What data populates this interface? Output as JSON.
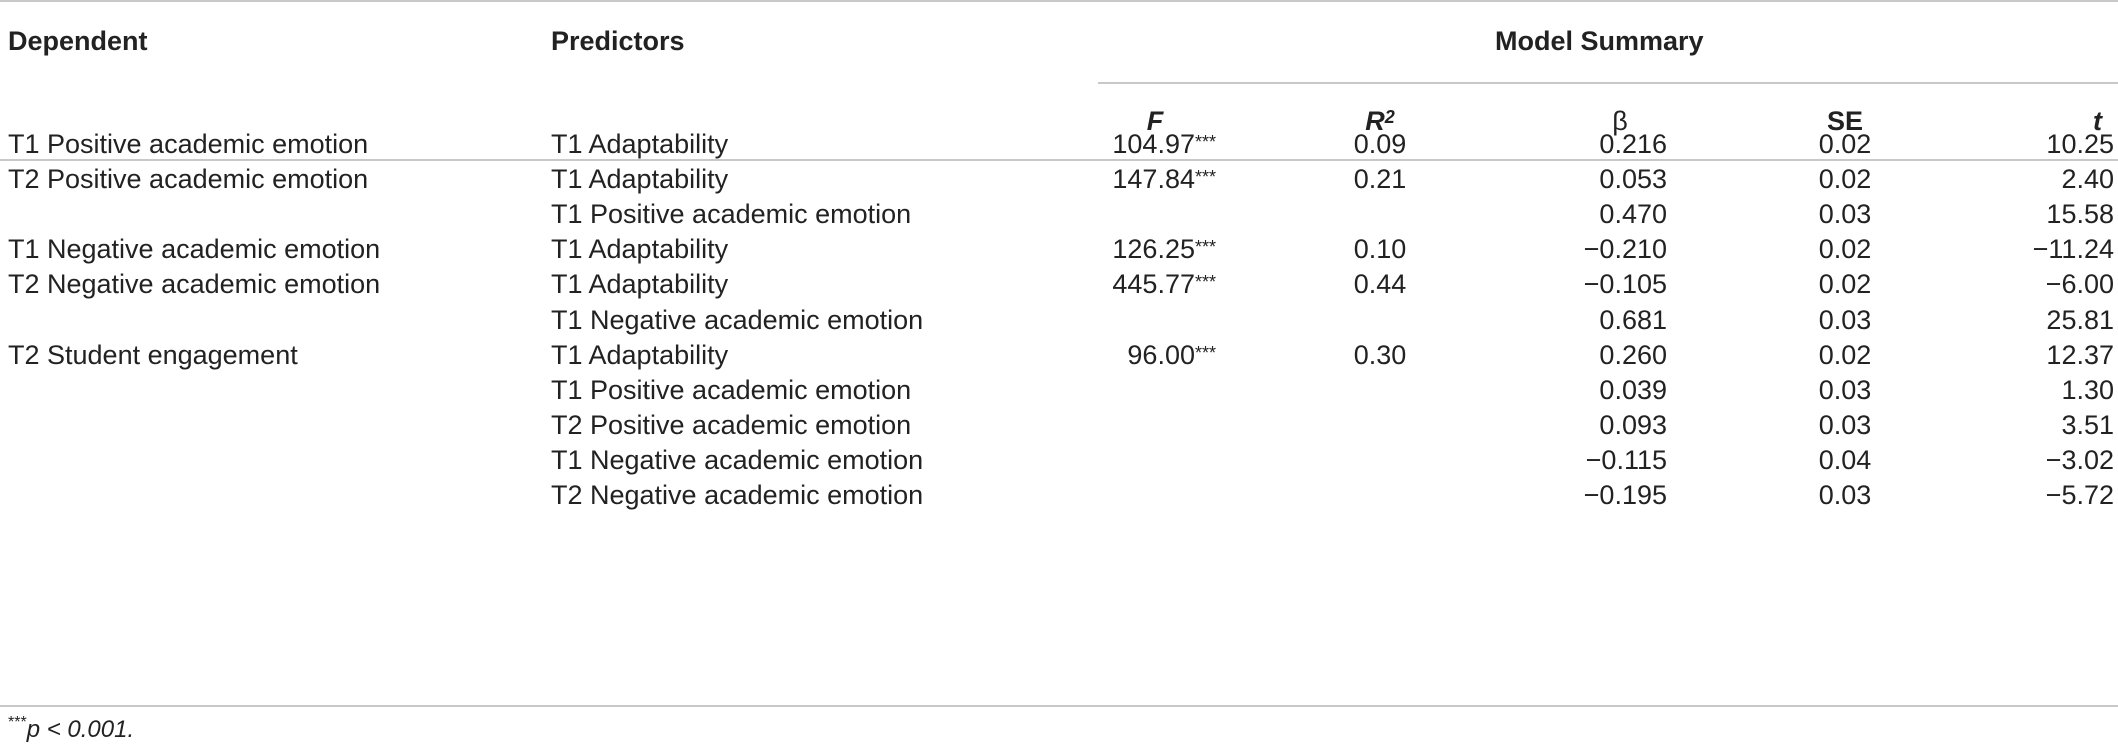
{
  "header": {
    "dependent": "Dependent",
    "predictors": "Predictors",
    "model_summary": "Model Summary",
    "f": "F",
    "r2_base": "R",
    "r2_sup": "2",
    "beta": "β",
    "se": "SE",
    "t": "t"
  },
  "rows": [
    {
      "dependent": "T1 Positive academic emotion",
      "predictor": "T1 Adaptability",
      "f": "104.97",
      "f_stars": "***",
      "r2": "0.09",
      "beta": "0.216",
      "se": "0.02",
      "t": "10.25"
    },
    {
      "dependent": "T2 Positive academic emotion",
      "predictor": "T1 Adaptability",
      "f": "147.84",
      "f_stars": "***",
      "r2": "0.21",
      "beta": "0.053",
      "se": "0.02",
      "t": "2.40"
    },
    {
      "dependent": "",
      "predictor": "T1 Positive academic emotion",
      "f": "",
      "f_stars": "",
      "r2": "",
      "beta": "0.470",
      "se": "0.03",
      "t": "15.58"
    },
    {
      "dependent": "T1 Negative academic emotion",
      "predictor": "T1 Adaptability",
      "f": "126.25",
      "f_stars": "***",
      "r2": "0.10",
      "beta": "−0.210",
      "se": "0.02",
      "t": "−11.24"
    },
    {
      "dependent": "T2 Negative academic emotion",
      "predictor": "T1 Adaptability",
      "f": "445.77",
      "f_stars": "***",
      "r2": "0.44",
      "beta": "−0.105",
      "se": "0.02",
      "t": "−6.00"
    },
    {
      "dependent": "",
      "predictor": "T1 Negative academic emotion",
      "f": "",
      "f_stars": "",
      "r2": "",
      "beta": "0.681",
      "se": "0.03",
      "t": "25.81"
    },
    {
      "dependent": "T2 Student engagement",
      "predictor": "T1 Adaptability",
      "f": "96.00",
      "f_stars": "***",
      "r2": "0.30",
      "beta": "0.260",
      "se": "0.02",
      "t": "12.37"
    },
    {
      "dependent": "",
      "predictor": "T1 Positive academic emotion",
      "f": "",
      "f_stars": "",
      "r2": "",
      "beta": "0.039",
      "se": "0.03",
      "t": "1.30"
    },
    {
      "dependent": "",
      "predictor": "T2 Positive academic emotion",
      "f": "",
      "f_stars": "",
      "r2": "",
      "beta": "0.093",
      "se": "0.03",
      "t": "3.51"
    },
    {
      "dependent": "",
      "predictor": "T1 Negative academic emotion",
      "f": "",
      "f_stars": "",
      "r2": "",
      "beta": "−0.115",
      "se": "0.04",
      "t": "−3.02"
    },
    {
      "dependent": "",
      "predictor": "T2 Negative academic emotion",
      "f": "",
      "f_stars": "",
      "r2": "",
      "beta": "−0.195",
      "se": "0.03",
      "t": "−5.72"
    }
  ],
  "footnote": {
    "stars": "***",
    "text": "p < 0.001."
  }
}
